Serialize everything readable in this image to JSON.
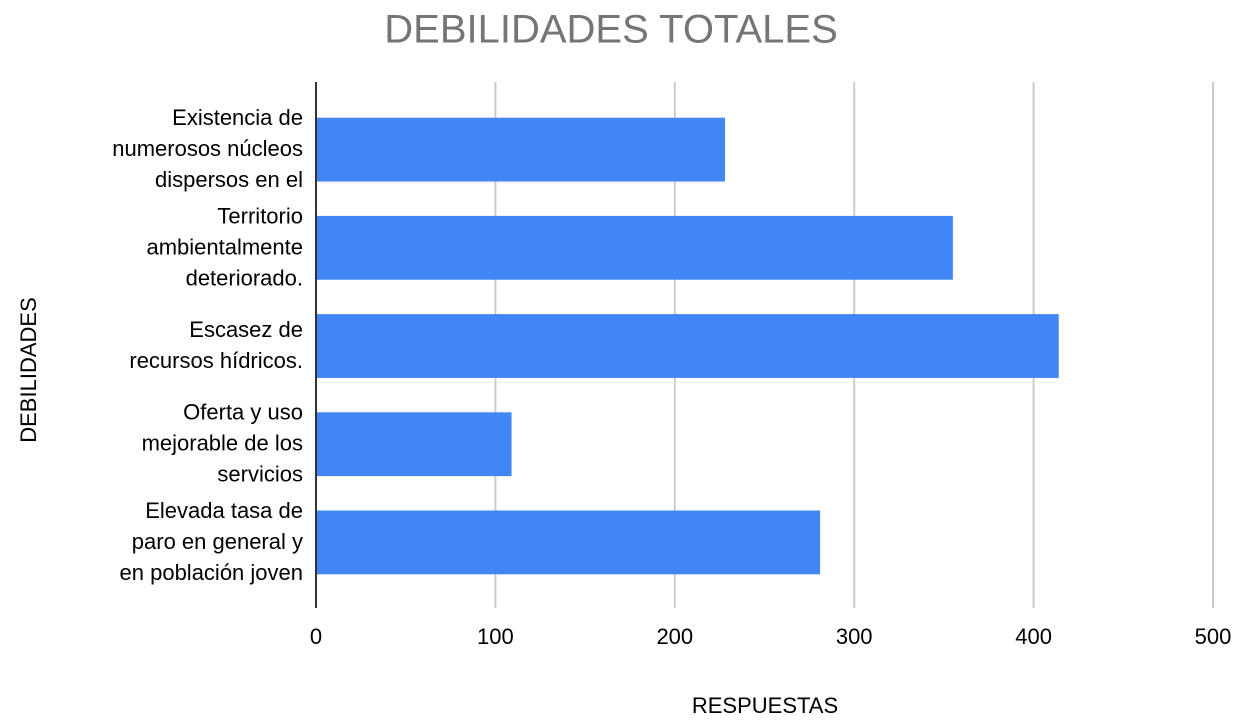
{
  "chart_data": {
    "type": "bar",
    "orientation": "horizontal",
    "title": "DEBILIDADES TOTALES",
    "x_label": "RESPUESTAS",
    "y_label": "DEBILIDADES",
    "categories": [
      "Existencia de\nnumerosos núcleos\ndispersos en el",
      "Territorio\nambientalmente\ndeteriorado.",
      "Escasez de\nrecursos hídricos.",
      "Oferta y uso\nmejorable de los\nservicios",
      "Elevada tasa de\nparo en general y\nen población joven"
    ],
    "values": [
      228,
      355,
      414,
      109,
      281
    ],
    "color": "#4285f4",
    "xlim": [
      0,
      500
    ],
    "xticks": [
      0,
      100,
      200,
      300,
      400,
      500
    ],
    "grid": true
  }
}
